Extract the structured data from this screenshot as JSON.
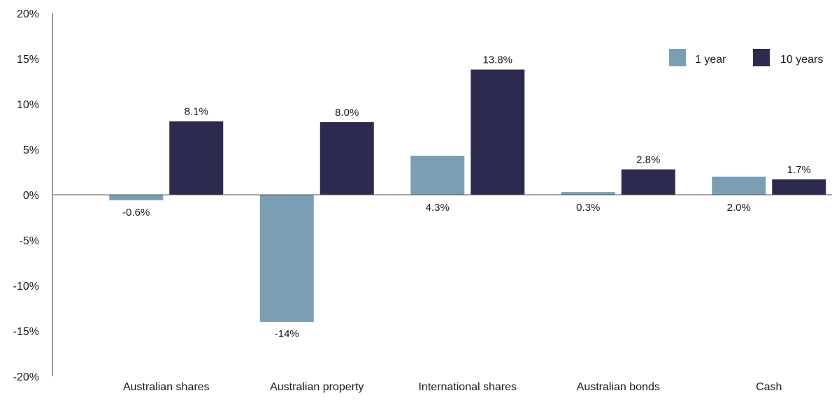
{
  "chart_data": {
    "type": "bar",
    "categories": [
      "Australian shares",
      "Australian property",
      "International shares",
      "Australian bonds",
      "Cash"
    ],
    "series": [
      {
        "name": "1 year",
        "color": "#7a9fb5",
        "values": [
          -0.6,
          -14,
          4.3,
          0.3,
          2.0
        ],
        "labels": [
          "-0.6%",
          "-14%",
          "4.3%",
          "0.3%",
          "2.0%"
        ]
      },
      {
        "name": "10 years",
        "color": "#2d2a50",
        "values": [
          8.1,
          8.0,
          13.8,
          2.8,
          1.7
        ],
        "labels": [
          "8.1%",
          "8.0%",
          "13.8%",
          "2.8%",
          "1.7%"
        ]
      }
    ],
    "ylim": [
      -20,
      20
    ],
    "yticks": [
      20,
      15,
      10,
      5,
      0,
      -5,
      -10,
      -15,
      -20
    ],
    "ytick_labels": [
      "20%",
      "15%",
      "10%",
      "5%",
      "0%",
      "-5%",
      "-10%",
      "-15%",
      "-20%"
    ],
    "legend_position": "top-right",
    "grid": false
  }
}
